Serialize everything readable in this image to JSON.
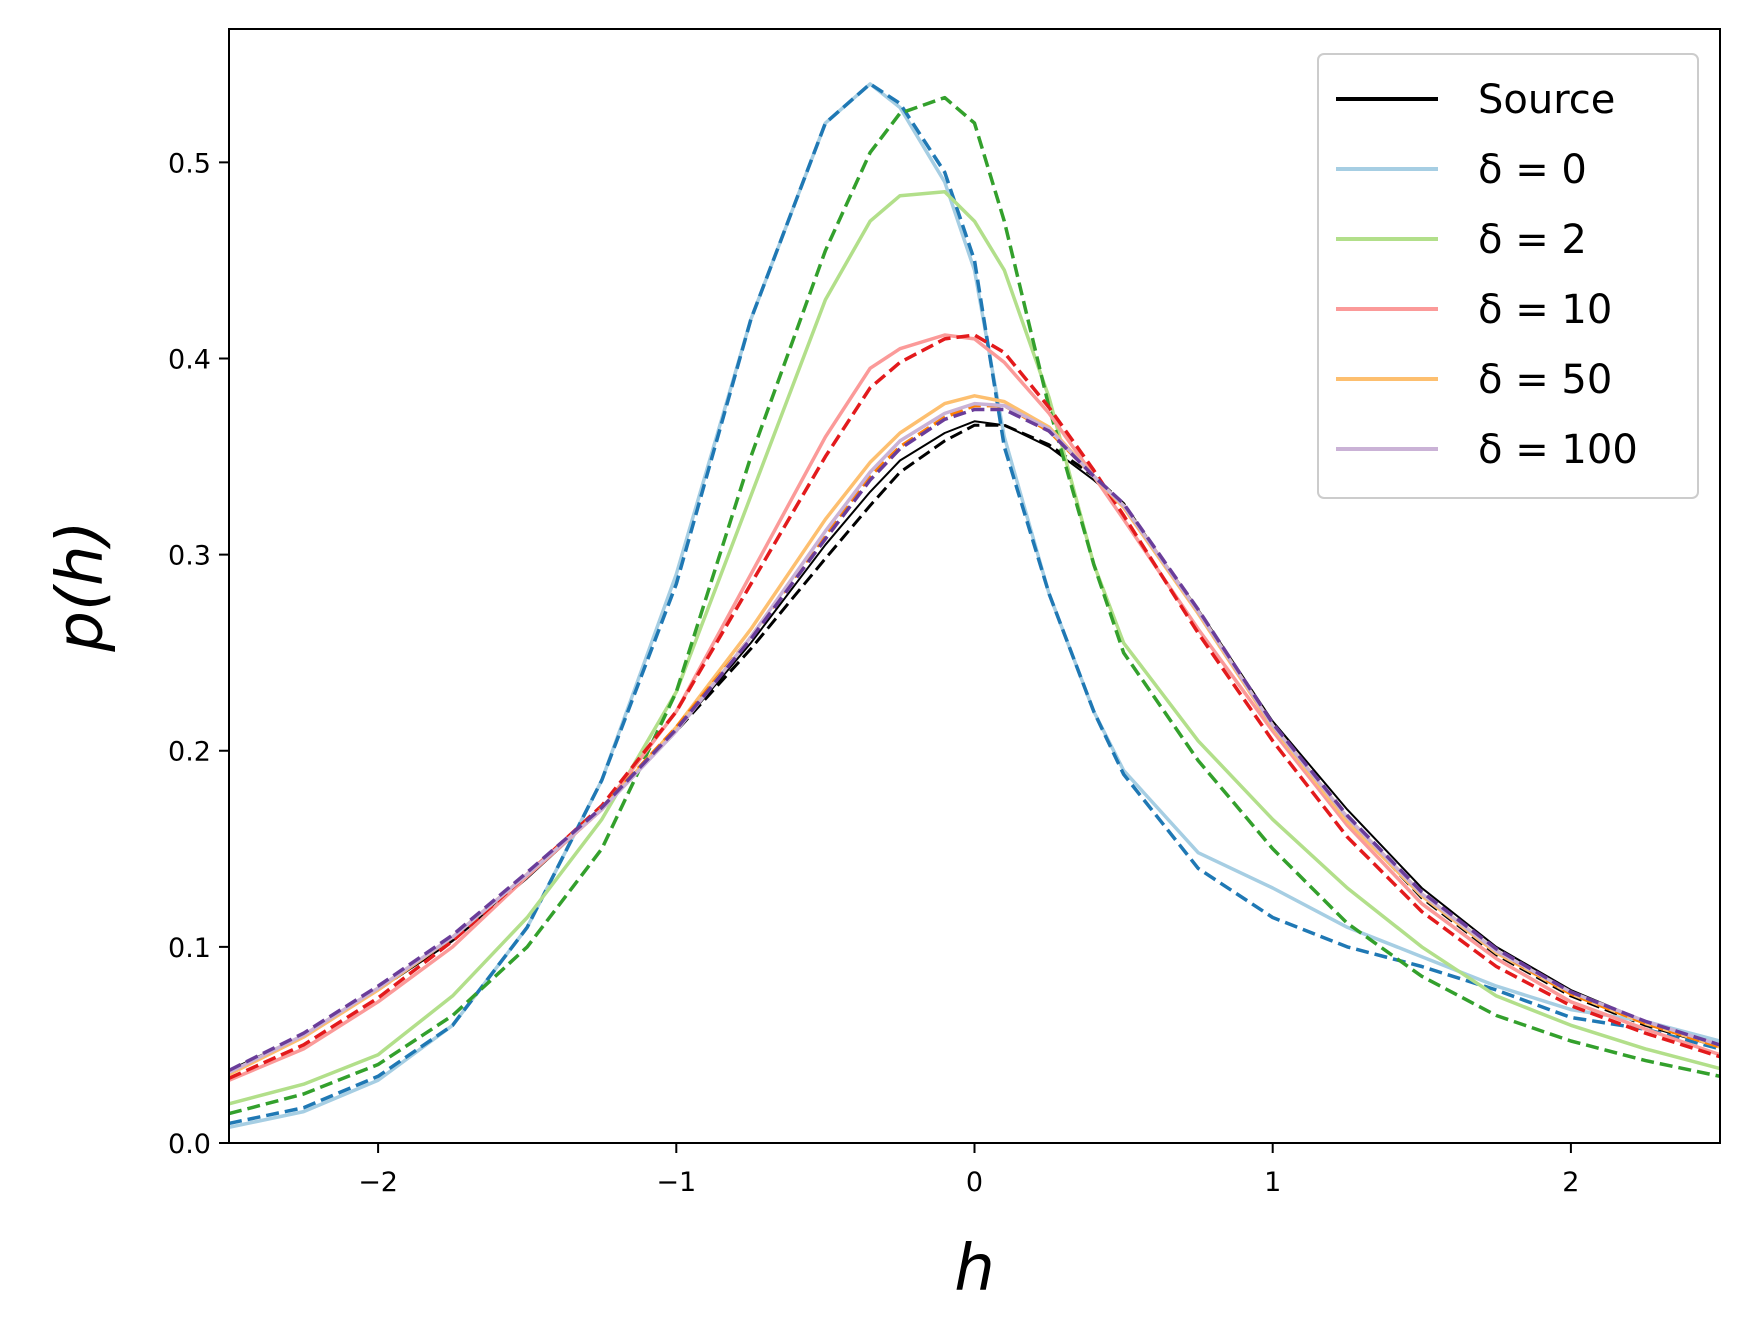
{
  "chart_data": {
    "type": "line",
    "xlabel": "h",
    "ylabel": "p(h)",
    "xlim": [
      -2.5,
      2.5
    ],
    "ylim": [
      0,
      0.568
    ],
    "xticks": [
      -2,
      -1,
      0,
      1,
      2
    ],
    "xtick_labels": [
      "−2",
      "−1",
      "0",
      "1",
      "2"
    ],
    "yticks": [
      0.0,
      0.1,
      0.2,
      0.3,
      0.4,
      0.5
    ],
    "ytick_labels": [
      "0.0",
      "0.1",
      "0.2",
      "0.3",
      "0.4",
      "0.5"
    ],
    "grid": false,
    "legend_position": "top-right",
    "x": [
      -2.5,
      -2.25,
      -2.0,
      -1.75,
      -1.5,
      -1.25,
      -1.0,
      -0.75,
      -0.5,
      -0.35,
      -0.25,
      -0.1,
      0.0,
      0.1,
      0.25,
      0.4,
      0.5,
      0.75,
      1.0,
      1.25,
      1.5,
      1.75,
      2.0,
      2.25,
      2.5
    ],
    "series": [
      {
        "name": "Source",
        "color": "#000000",
        "dashed": false,
        "width": 2,
        "values": [
          0.037,
          0.055,
          0.078,
          0.103,
          0.135,
          0.17,
          0.21,
          0.255,
          0.305,
          0.332,
          0.348,
          0.362,
          0.368,
          0.366,
          0.355,
          0.338,
          0.325,
          0.272,
          0.215,
          0.17,
          0.13,
          0.1,
          0.078,
          0.062,
          0.05
        ]
      },
      {
        "name": "",
        "color": "#000000",
        "dashed": true,
        "width": 3,
        "values": [
          0.037,
          0.055,
          0.078,
          0.104,
          0.136,
          0.17,
          0.21,
          0.252,
          0.298,
          0.325,
          0.342,
          0.358,
          0.366,
          0.366,
          0.356,
          0.34,
          0.326,
          0.27,
          0.212,
          0.165,
          0.125,
          0.096,
          0.075,
          0.06,
          0.049
        ]
      },
      {
        "name": "δ = 0",
        "color": "#a6cee3",
        "dashed": false,
        "width": 3.5,
        "values": [
          0.008,
          0.016,
          0.032,
          0.06,
          0.11,
          0.185,
          0.29,
          0.42,
          0.52,
          0.54,
          0.528,
          0.49,
          0.445,
          0.36,
          0.28,
          0.22,
          0.19,
          0.148,
          0.13,
          0.11,
          0.095,
          0.08,
          0.068,
          0.062,
          0.052
        ]
      },
      {
        "name": "",
        "color": "#1f78b4",
        "dashed": true,
        "width": 3.5,
        "values": [
          0.01,
          0.018,
          0.034,
          0.06,
          0.11,
          0.185,
          0.285,
          0.42,
          0.52,
          0.54,
          0.53,
          0.495,
          0.45,
          0.355,
          0.28,
          0.22,
          0.188,
          0.14,
          0.115,
          0.1,
          0.09,
          0.078,
          0.064,
          0.058,
          0.048
        ]
      },
      {
        "name": "δ = 2",
        "color": "#b2df8a",
        "dashed": false,
        "width": 3.5,
        "values": [
          0.02,
          0.03,
          0.045,
          0.075,
          0.115,
          0.165,
          0.23,
          0.33,
          0.43,
          0.47,
          0.483,
          0.485,
          0.47,
          0.445,
          0.38,
          0.295,
          0.255,
          0.205,
          0.165,
          0.13,
          0.1,
          0.075,
          0.06,
          0.048,
          0.038
        ]
      },
      {
        "name": "",
        "color": "#33a02c",
        "dashed": true,
        "width": 3.5,
        "values": [
          0.015,
          0.025,
          0.04,
          0.065,
          0.1,
          0.15,
          0.23,
          0.35,
          0.455,
          0.505,
          0.525,
          0.533,
          0.52,
          0.47,
          0.375,
          0.295,
          0.25,
          0.195,
          0.15,
          0.112,
          0.085,
          0.065,
          0.052,
          0.042,
          0.034
        ]
      },
      {
        "name": "δ = 10",
        "color": "#fb9a99",
        "dashed": false,
        "width": 3.5,
        "values": [
          0.032,
          0.048,
          0.072,
          0.1,
          0.136,
          0.17,
          0.22,
          0.29,
          0.36,
          0.395,
          0.405,
          0.412,
          0.41,
          0.398,
          0.372,
          0.34,
          0.318,
          0.262,
          0.21,
          0.162,
          0.122,
          0.094,
          0.072,
          0.058,
          0.045
        ]
      },
      {
        "name": "",
        "color": "#e31a1c",
        "dashed": true,
        "width": 3.5,
        "values": [
          0.033,
          0.05,
          0.074,
          0.103,
          0.137,
          0.172,
          0.22,
          0.285,
          0.35,
          0.385,
          0.398,
          0.41,
          0.412,
          0.403,
          0.375,
          0.343,
          0.32,
          0.26,
          0.205,
          0.156,
          0.118,
          0.09,
          0.07,
          0.056,
          0.044
        ]
      },
      {
        "name": "δ = 50",
        "color": "#fdbf6f",
        "dashed": false,
        "width": 3.5,
        "values": [
          0.035,
          0.054,
          0.078,
          0.105,
          0.137,
          0.17,
          0.212,
          0.262,
          0.318,
          0.347,
          0.362,
          0.377,
          0.381,
          0.378,
          0.365,
          0.34,
          0.324,
          0.27,
          0.212,
          0.164,
          0.126,
          0.097,
          0.076,
          0.061,
          0.049
        ]
      },
      {
        "name": "",
        "color": "#ff7f00",
        "dashed": true,
        "width": 3.5,
        "values": [
          0.036,
          0.055,
          0.079,
          0.105,
          0.137,
          0.171,
          0.212,
          0.258,
          0.31,
          0.34,
          0.355,
          0.37,
          0.376,
          0.376,
          0.363,
          0.34,
          0.325,
          0.271,
          0.213,
          0.166,
          0.127,
          0.098,
          0.076,
          0.061,
          0.049
        ]
      },
      {
        "name": "δ = 100",
        "color": "#cab2d6",
        "dashed": false,
        "width": 3.5,
        "values": [
          0.036,
          0.055,
          0.079,
          0.105,
          0.137,
          0.17,
          0.21,
          0.258,
          0.312,
          0.342,
          0.358,
          0.372,
          0.377,
          0.376,
          0.364,
          0.34,
          0.325,
          0.271,
          0.213,
          0.166,
          0.127,
          0.098,
          0.077,
          0.062,
          0.05
        ]
      },
      {
        "name": "",
        "color": "#6a3d9a",
        "dashed": true,
        "width": 3.5,
        "values": [
          0.037,
          0.056,
          0.08,
          0.106,
          0.138,
          0.171,
          0.211,
          0.257,
          0.308,
          0.338,
          0.354,
          0.369,
          0.374,
          0.374,
          0.363,
          0.34,
          0.326,
          0.272,
          0.214,
          0.167,
          0.128,
          0.099,
          0.077,
          0.062,
          0.05
        ]
      }
    ]
  }
}
